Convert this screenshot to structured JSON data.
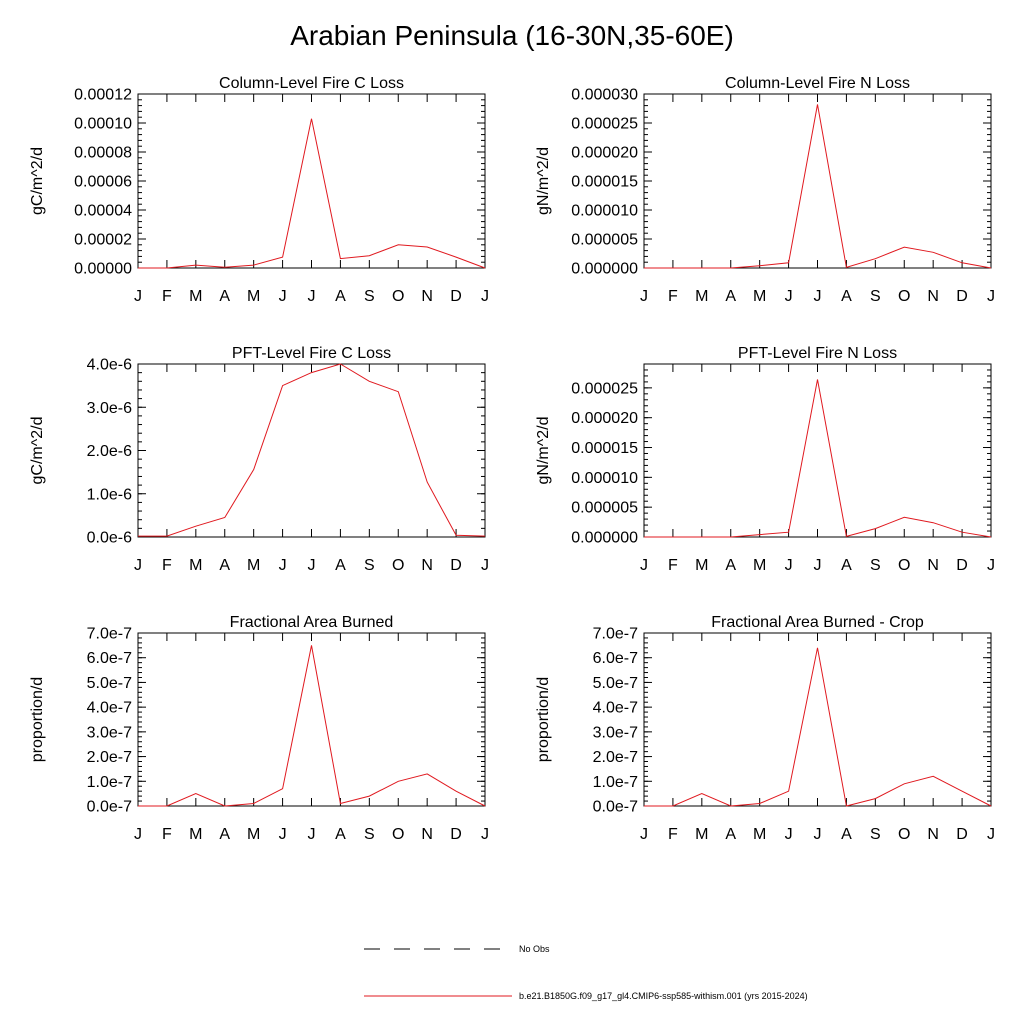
{
  "title": "Arabian Peninsula (16-30N,35-60E)",
  "months": [
    "J",
    "F",
    "M",
    "A",
    "M",
    "J",
    "J",
    "A",
    "S",
    "O",
    "N",
    "D",
    "J"
  ],
  "legend": {
    "obs_label": "No Obs",
    "model_label": "b.e21.B1850G.f09_g17_gl4.CMIP6-ssp585-withism.001 (yrs 2015-2024)",
    "model_color": "#e0191f"
  },
  "chart_data": [
    {
      "type": "line",
      "title": "Column-Level Fire C Loss",
      "ylabel": "gC/m^2/d",
      "ylim": [
        0,
        0.00012
      ],
      "yticks": [
        0,
        2e-05,
        4e-05,
        6e-05,
        8e-05,
        0.0001,
        0.00012
      ],
      "ytick_labels": [
        "0.00000",
        "0.00002",
        "0.00004",
        "0.00006",
        "0.00008",
        "0.00010",
        "0.00012"
      ],
      "series": [
        {
          "values": [
            0,
            0,
            2e-06,
            5e-07,
            2e-06,
            7.5e-06,
            0.000103,
            6.5e-06,
            8.5e-06,
            1.6e-05,
            1.45e-05,
            7.5e-06,
            0
          ]
        }
      ]
    },
    {
      "type": "line",
      "title": "Column-Level Fire N Loss",
      "ylabel": "gN/m^2/d",
      "ylim": [
        0,
        3e-05
      ],
      "yticks": [
        0,
        5e-06,
        1e-05,
        1.5e-05,
        2e-05,
        2.5e-05,
        3e-05
      ],
      "ytick_labels": [
        "0.000000",
        "0.000005",
        "0.000010",
        "0.000015",
        "0.000020",
        "0.000025",
        "0.000030"
      ],
      "series": [
        {
          "values": [
            0,
            0,
            0,
            0,
            4e-07,
            9e-07,
            2.82e-05,
            1e-07,
            1.6e-06,
            3.6e-06,
            2.7e-06,
            9e-07,
            0
          ]
        }
      ]
    },
    {
      "type": "line",
      "title": "PFT-Level Fire C Loss",
      "ylabel": "gC/m^2/d",
      "ylim": [
        0,
        4e-06
      ],
      "yticks": [
        0,
        1e-06,
        2e-06,
        3e-06,
        4e-06
      ],
      "ytick_labels": [
        "0.0e-6",
        "1.0e-6",
        "2.0e-6",
        "3.0e-6",
        "4.0e-6"
      ],
      "series": [
        {
          "values": [
            2e-08,
            2e-08,
            2.5e-07,
            4.5e-07,
            1.56e-06,
            3.5e-06,
            3.8e-06,
            4e-06,
            3.6e-06,
            3.36e-06,
            1.27e-06,
            4e-08,
            2e-08
          ]
        }
      ]
    },
    {
      "type": "line",
      "title": "PFT-Level Fire N Loss",
      "ylabel": "gN/m^2/d",
      "ylim": [
        0,
        2.9e-05
      ],
      "yticks": [
        0,
        5e-06,
        1e-05,
        1.5e-05,
        2e-05,
        2.5e-05
      ],
      "ytick_labels": [
        "0.000000",
        "0.000005",
        "0.000010",
        "0.000015",
        "0.000020",
        "0.000025"
      ],
      "series": [
        {
          "values": [
            0,
            0,
            0,
            0,
            4e-07,
            8e-07,
            2.64e-05,
            1e-07,
            1.4e-06,
            3.3e-06,
            2.4e-06,
            8e-07,
            0
          ]
        }
      ]
    },
    {
      "type": "line",
      "title": "Fractional Area Burned",
      "ylabel": "proportion/d",
      "ylim": [
        0,
        7e-07
      ],
      "yticks": [
        0,
        1e-07,
        2e-07,
        3e-07,
        4e-07,
        5e-07,
        6e-07,
        7e-07
      ],
      "ytick_labels": [
        "0.0e-7",
        "1.0e-7",
        "2.0e-7",
        "3.0e-7",
        "4.0e-7",
        "5.0e-7",
        "6.0e-7",
        "7.0e-7"
      ],
      "series": [
        {
          "values": [
            0,
            0,
            5e-08,
            0,
            1e-08,
            7e-08,
            6.5e-07,
            1e-08,
            4e-08,
            1e-07,
            1.3e-07,
            6e-08,
            0
          ]
        }
      ]
    },
    {
      "type": "line",
      "title": "Fractional Area Burned - Crop",
      "ylabel": "proportion/d",
      "ylim": [
        0,
        7e-07
      ],
      "yticks": [
        0,
        1e-07,
        2e-07,
        3e-07,
        4e-07,
        5e-07,
        6e-07,
        7e-07
      ],
      "ytick_labels": [
        "0.0e-7",
        "1.0e-7",
        "2.0e-7",
        "3.0e-7",
        "4.0e-7",
        "5.0e-7",
        "6.0e-7",
        "7.0e-7"
      ],
      "series": [
        {
          "values": [
            0,
            0,
            5e-08,
            0,
            1e-08,
            6e-08,
            6.4e-07,
            0,
            3e-08,
            9e-08,
            1.2e-07,
            6e-08,
            0
          ]
        }
      ]
    }
  ]
}
